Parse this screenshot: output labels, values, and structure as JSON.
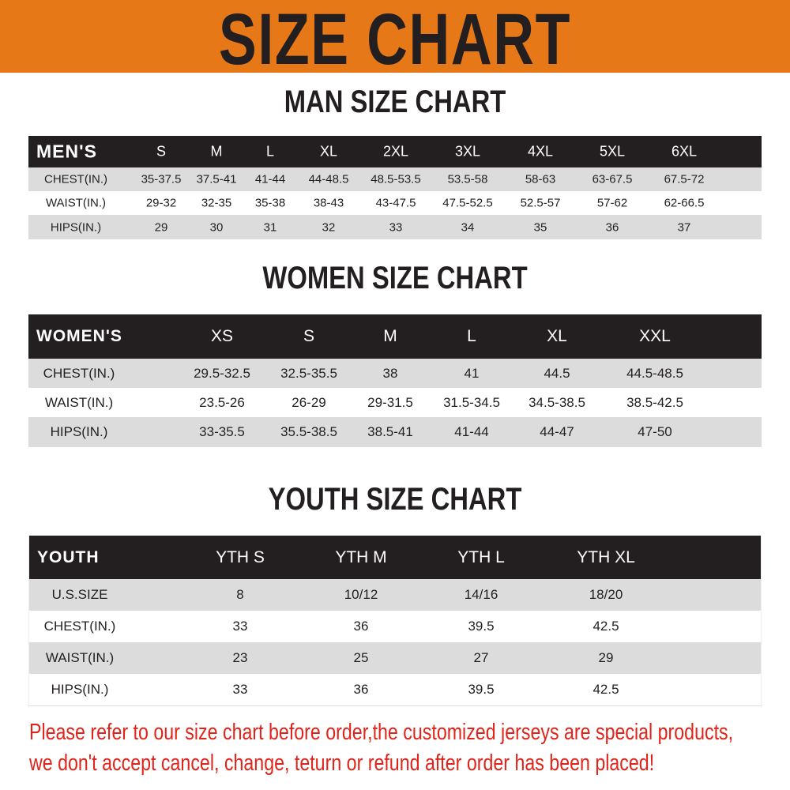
{
  "banner_title": "SIZE CHART",
  "colors": {
    "banner": "#E67818",
    "header_row": "#231F20",
    "stripe": "#DCDCDC",
    "notice": "#E2231A"
  },
  "men": {
    "title": "MAN SIZE CHART",
    "header": [
      "MEN'S",
      "S",
      "M",
      "L",
      "XL",
      "2XL",
      "3XL",
      "4XL",
      "5XL",
      "6XL"
    ],
    "rows": [
      [
        "CHEST(IN.)",
        "35-37.5",
        "37.5-41",
        "41-44",
        "44-48.5",
        "48.5-53.5",
        "53.5-58",
        "58-63",
        "63-67.5",
        "67.5-72"
      ],
      [
        "WAIST(IN.)",
        "29-32",
        "32-35",
        "35-38",
        "38-43",
        "43-47.5",
        "47.5-52.5",
        "52.5-57",
        "57-62",
        "62-66.5"
      ],
      [
        "HIPS(IN.)",
        "29",
        "30",
        "31",
        "32",
        "33",
        "34",
        "35",
        "36",
        "37"
      ]
    ]
  },
  "women": {
    "title": "WOMEN SIZE CHART",
    "header": [
      "WOMEN'S",
      "XS",
      "S",
      "M",
      "L",
      "XL",
      "XXL"
    ],
    "rows": [
      [
        "CHEST(IN.)",
        "29.5-32.5",
        "32.5-35.5",
        "38",
        "41",
        "44.5",
        "44.5-48.5"
      ],
      [
        "WAIST(IN.)",
        "23.5-26",
        "26-29",
        "29-31.5",
        "31.5-34.5",
        "34.5-38.5",
        "38.5-42.5"
      ],
      [
        "HIPS(IN.)",
        "33-35.5",
        "35.5-38.5",
        "38.5-41",
        "41-44",
        "44-47",
        "47-50"
      ]
    ]
  },
  "youth": {
    "title": "YOUTH SIZE CHART",
    "header": [
      "YOUTH",
      "YTH S",
      "YTH M",
      "YTH L",
      "YTH XL"
    ],
    "rows": [
      [
        "U.S.SIZE",
        "8",
        "10/12",
        "14/16",
        "18/20"
      ],
      [
        "CHEST(IN.)",
        "33",
        "36",
        "39.5",
        "42.5"
      ],
      [
        "WAIST(IN.)",
        "23",
        "25",
        "27",
        "29"
      ],
      [
        "HIPS(IN.)",
        "33",
        "36",
        "39.5",
        "42.5"
      ]
    ]
  },
  "notice": [
    "Please refer to our size chart before order,the customized jerseys are special products,",
    "we don't accept cancel, change, teturn or refund after order has been placed!"
  ]
}
